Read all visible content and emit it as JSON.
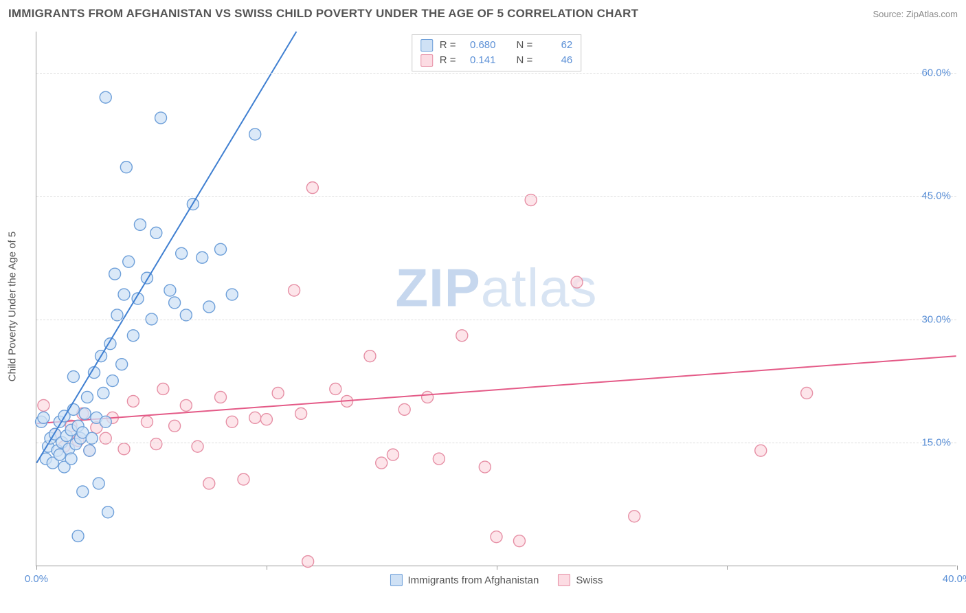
{
  "title": "IMMIGRANTS FROM AFGHANISTAN VS SWISS CHILD POVERTY UNDER THE AGE OF 5 CORRELATION CHART",
  "source_prefix": "Source: ",
  "source_name": "ZipAtlas.com",
  "ylabel": "Child Poverty Under the Age of 5",
  "watermark": {
    "strong": "ZIP",
    "rest": "atlas"
  },
  "chart": {
    "type": "scatter",
    "xlim": [
      0,
      40
    ],
    "ylim": [
      0,
      65
    ],
    "x_ticks": [
      0,
      10,
      20,
      30,
      40
    ],
    "x_tick_labels": [
      "0.0%",
      "",
      "",
      "",
      "40.0%"
    ],
    "y_gridlines": [
      15,
      30,
      45,
      60
    ],
    "y_tick_labels": [
      "15.0%",
      "30.0%",
      "45.0%",
      "60.0%"
    ],
    "background_color": "#ffffff",
    "grid_color": "#dddddd",
    "axis_color": "#999999",
    "marker_radius": 8.5,
    "marker_stroke_width": 1.4,
    "line_width": 2
  },
  "series": {
    "afghanistan": {
      "label": "Immigrants from Afghanistan",
      "color_fill": "#cfe1f5",
      "color_stroke": "#6d9fd9",
      "line_color": "#3f7fd1",
      "R": "0.680",
      "N": "62",
      "trend": {
        "x1": 0,
        "y1": 12.5,
        "x2": 11.3,
        "y2": 65
      },
      "points": [
        [
          0.2,
          17.5
        ],
        [
          0.3,
          18.0
        ],
        [
          0.4,
          13.0
        ],
        [
          0.5,
          14.5
        ],
        [
          0.6,
          15.5
        ],
        [
          0.7,
          12.5
        ],
        [
          0.8,
          16.0
        ],
        [
          0.9,
          14.0
        ],
        [
          1.0,
          17.5
        ],
        [
          1.0,
          13.5
        ],
        [
          1.1,
          15.0
        ],
        [
          1.2,
          18.2
        ],
        [
          1.2,
          12.0
        ],
        [
          1.3,
          15.8
        ],
        [
          1.4,
          14.2
        ],
        [
          1.5,
          16.5
        ],
        [
          1.5,
          13.0
        ],
        [
          1.6,
          19.0
        ],
        [
          1.7,
          14.8
        ],
        [
          1.8,
          17.0
        ],
        [
          1.8,
          3.6
        ],
        [
          1.9,
          15.5
        ],
        [
          2.0,
          16.2
        ],
        [
          2.0,
          9.0
        ],
        [
          2.1,
          18.5
        ],
        [
          2.2,
          20.5
        ],
        [
          2.4,
          15.5
        ],
        [
          2.5,
          23.5
        ],
        [
          2.6,
          18.0
        ],
        [
          2.7,
          10.0
        ],
        [
          2.8,
          25.5
        ],
        [
          2.9,
          21.0
        ],
        [
          3.0,
          17.5
        ],
        [
          3.1,
          6.5
        ],
        [
          3.2,
          27.0
        ],
        [
          3.3,
          22.5
        ],
        [
          3.4,
          35.5
        ],
        [
          3.5,
          30.5
        ],
        [
          3.7,
          24.5
        ],
        [
          3.8,
          33.0
        ],
        [
          3.9,
          48.5
        ],
        [
          4.0,
          37.0
        ],
        [
          4.2,
          28.0
        ],
        [
          4.4,
          32.5
        ],
        [
          4.5,
          41.5
        ],
        [
          4.8,
          35.0
        ],
        [
          5.0,
          30.0
        ],
        [
          5.2,
          40.5
        ],
        [
          5.4,
          54.5
        ],
        [
          3.0,
          57.0
        ],
        [
          5.8,
          33.5
        ],
        [
          6.0,
          32.0
        ],
        [
          6.3,
          38.0
        ],
        [
          6.5,
          30.5
        ],
        [
          6.8,
          44.0
        ],
        [
          7.2,
          37.5
        ],
        [
          7.5,
          31.5
        ],
        [
          8.0,
          38.5
        ],
        [
          8.5,
          33.0
        ],
        [
          9.5,
          52.5
        ],
        [
          2.3,
          14.0
        ],
        [
          1.6,
          23.0
        ]
      ]
    },
    "swiss": {
      "label": "Swiss",
      "color_fill": "#fcdce3",
      "color_stroke": "#e68fa5",
      "line_color": "#e45a87",
      "R": "0.141",
      "N": "46",
      "trend": {
        "x1": 0,
        "y1": 17.3,
        "x2": 40,
        "y2": 25.5
      },
      "points": [
        [
          0.3,
          19.5
        ],
        [
          0.8,
          16.0
        ],
        [
          1.2,
          14.5
        ],
        [
          1.5,
          17.0
        ],
        [
          1.8,
          15.2
        ],
        [
          2.0,
          18.5
        ],
        [
          2.3,
          14.0
        ],
        [
          2.6,
          16.8
        ],
        [
          3.0,
          15.5
        ],
        [
          3.3,
          18.0
        ],
        [
          3.8,
          14.2
        ],
        [
          4.2,
          20.0
        ],
        [
          4.8,
          17.5
        ],
        [
          5.2,
          14.8
        ],
        [
          5.5,
          21.5
        ],
        [
          6.0,
          17.0
        ],
        [
          6.5,
          19.5
        ],
        [
          7.0,
          14.5
        ],
        [
          7.5,
          10.0
        ],
        [
          8.0,
          20.5
        ],
        [
          8.5,
          17.5
        ],
        [
          9.0,
          10.5
        ],
        [
          9.5,
          18.0
        ],
        [
          10.0,
          17.8
        ],
        [
          10.5,
          21.0
        ],
        [
          11.2,
          33.5
        ],
        [
          11.5,
          18.5
        ],
        [
          11.8,
          0.5
        ],
        [
          12.0,
          46.0
        ],
        [
          13.0,
          21.5
        ],
        [
          13.5,
          20.0
        ],
        [
          14.5,
          25.5
        ],
        [
          15.0,
          12.5
        ],
        [
          15.5,
          13.5
        ],
        [
          16.0,
          19.0
        ],
        [
          17.0,
          20.5
        ],
        [
          17.5,
          13.0
        ],
        [
          18.5,
          28.0
        ],
        [
          19.5,
          12.0
        ],
        [
          20.0,
          3.5
        ],
        [
          21.0,
          3.0
        ],
        [
          21.5,
          44.5
        ],
        [
          23.5,
          34.5
        ],
        [
          26.0,
          6.0
        ],
        [
          31.5,
          14.0
        ],
        [
          33.5,
          21.0
        ]
      ]
    }
  },
  "r_legend_labels": {
    "R": "R =",
    "N": "N ="
  }
}
